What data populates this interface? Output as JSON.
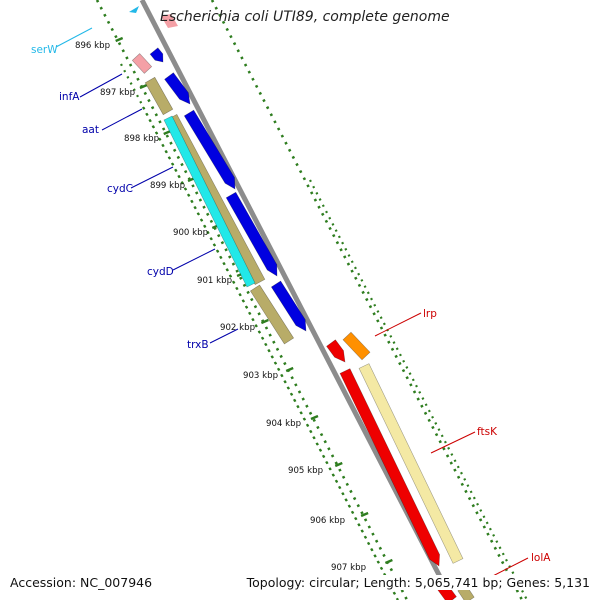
{
  "title": "Escherichia coli UTI89, complete genome",
  "footer": {
    "accession": "Accession: NC_007946",
    "topology": "Topology: circular; Length: 5,065,741 bp; Genes: 5,131"
  },
  "colors": {
    "backbone": "#8c8c8c",
    "tick": "#2e7d1f",
    "forward_gene": "#0000e0",
    "reverse_gene": "#b8ac68",
    "rna_gene": "#f4a0a6",
    "cyd_gene": "#22e8e8",
    "red_gene": "#ee0000",
    "light_gene": "#f4e9a4",
    "orange_gene": "#ff9000",
    "label_blue": "#0000aa",
    "label_cyan": "#22b8e8",
    "label_red": "#cc0000"
  },
  "tick_labels": [
    "896 kbp",
    "897 kbp",
    "898 kbp",
    "899 kbp",
    "900 kbp",
    "901 kbp",
    "902 kbp",
    "903 kbp",
    "904 kbp",
    "905 kbp",
    "906 kbp",
    "907 kbp"
  ],
  "gene_labels": {
    "serW": "serW",
    "infA": "infA",
    "aat": "aat",
    "cydC": "cydC",
    "cydD": "cydD",
    "trxB": "trxB",
    "lrp": "lrp",
    "ftsK": "ftsK",
    "lolA": "lolA"
  }
}
